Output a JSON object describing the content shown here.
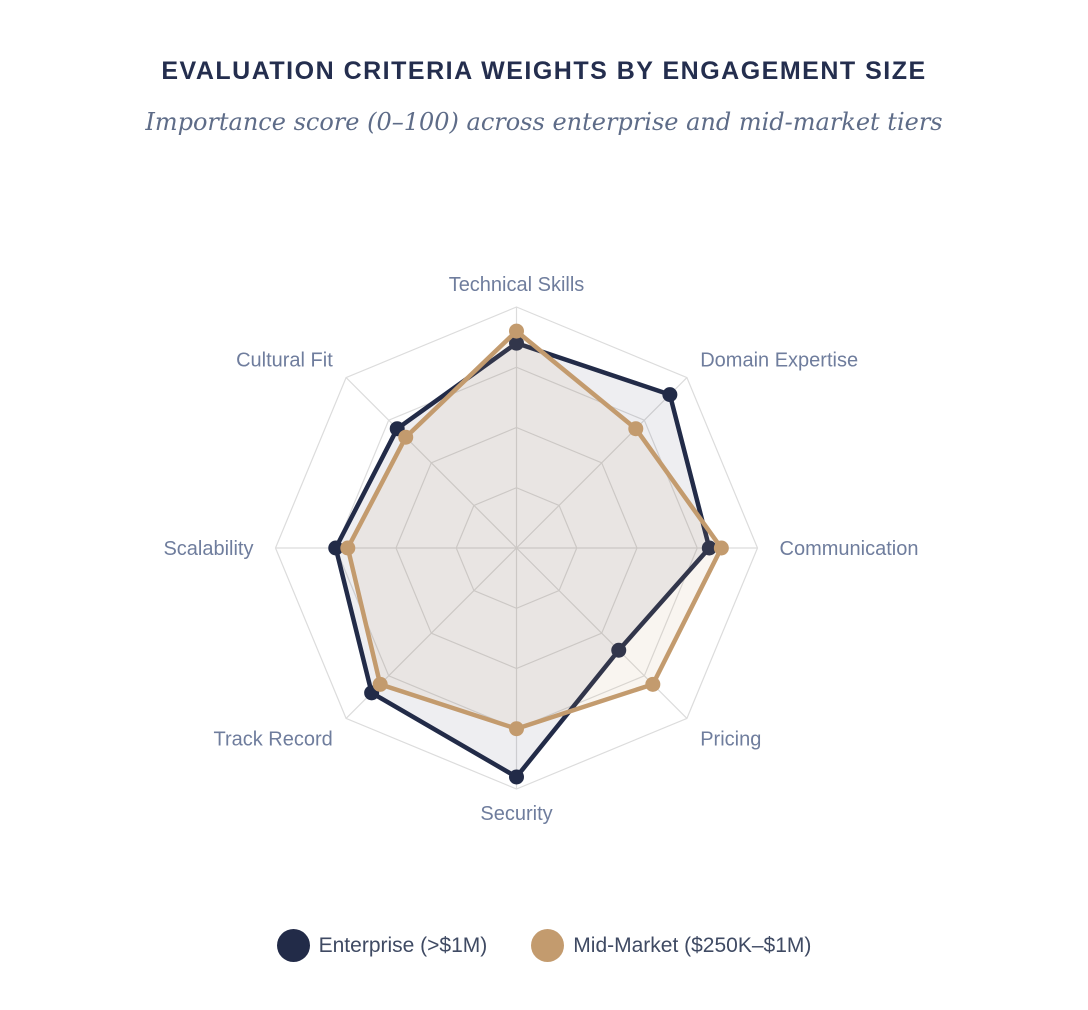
{
  "header": {
    "title": "EVALUATION CRITERIA WEIGHTS BY ENGAGEMENT SIZE",
    "subtitle": "Importance score (0–100) across enterprise and mid-market tiers"
  },
  "chart_data": {
    "type": "radar",
    "categories": [
      "Technical Skills",
      "Domain Expertise",
      "Communication",
      "Pricing",
      "Security",
      "Track Record",
      "Scalability",
      "Cultural Fit"
    ],
    "series": [
      {
        "name": "Enterprise (>$1M)",
        "color": "#222b48",
        "fill_color": "rgba(34, 43, 72, 0.08)",
        "values": [
          85,
          90,
          80,
          60,
          95,
          85,
          75,
          70
        ]
      },
      {
        "name": "Mid-Market ($250K–$1M)",
        "color": "#c39b6e",
        "fill_color": "rgba(195, 155, 110, 0.10)",
        "values": [
          90,
          70,
          85,
          80,
          75,
          80,
          70,
          65
        ]
      }
    ],
    "scale": {
      "min": 0,
      "max": 100,
      "ticks": [
        25,
        50,
        75,
        100
      ],
      "tick_labels_visible": false
    },
    "grid": {
      "shape": "polygon",
      "color": "#dcdcdc",
      "spokes": true
    },
    "legend_position": "bottom"
  },
  "colors": {
    "title_text": "#242e4e",
    "subtitle_text": "#5e6c88",
    "axis_label_text": "#6f7d9d",
    "legend_text": "#3f4a63",
    "background": "#ffffff"
  }
}
